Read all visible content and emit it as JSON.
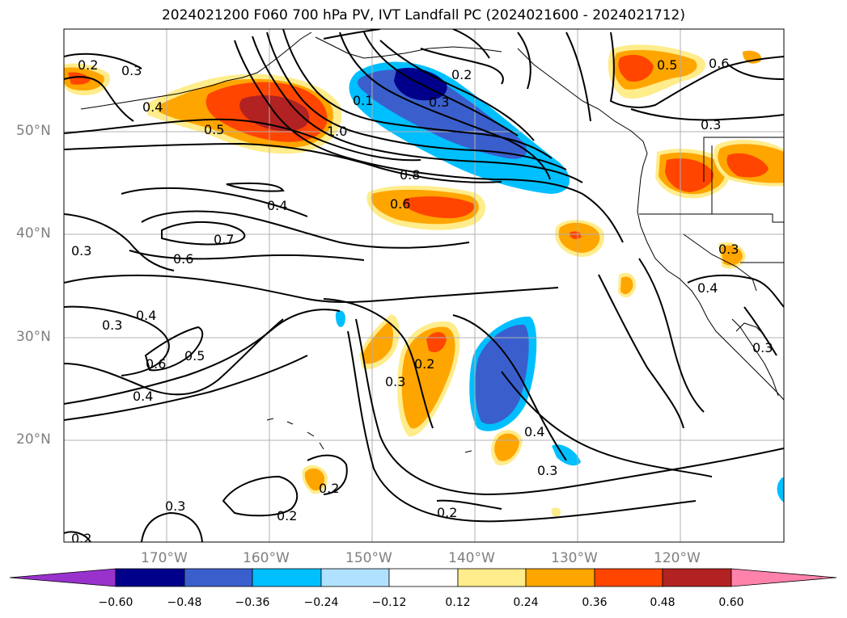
{
  "title": "2024021200 F060 700 hPa PV, IVT Landfall PC (2024021600 - 2024021712)",
  "lat_labels": [
    "50°N",
    "40°N",
    "30°N",
    "20°N"
  ],
  "lon_labels": [
    "170°W",
    "160°W",
    "150°W",
    "140°W",
    "130°W",
    "120°W"
  ],
  "colorbar": {
    "ticks": [
      "−0.60",
      "−0.48",
      "−0.36",
      "−0.24",
      "−0.12",
      "0.12",
      "0.24",
      "0.36",
      "0.48",
      "0.60"
    ],
    "colors": [
      "#9932cc",
      "#00008b",
      "#3a5fcd",
      "#00bfff",
      "#b0e2ff",
      "#ffffff",
      "#ffec8b",
      "#ffa500",
      "#ff4500",
      "#b22222",
      "#ff82ab"
    ]
  },
  "contour_labels": [
    "0.2",
    "0.3",
    "0.4",
    "0.5",
    "1.0",
    "0.1",
    "0.3",
    "0.2",
    "0.5",
    "0.6",
    "0.8",
    "0.6",
    "0.4",
    "0.7",
    "0.6",
    "0.3",
    "0.3",
    "0.4",
    "0.6",
    "0.5",
    "0.4",
    "0.2",
    "0.3",
    "0.4",
    "0.3",
    "0.2",
    "0.2",
    "0.3",
    "0.2",
    "0.2",
    "0.3",
    "0.4",
    "0.3",
    "0.3"
  ]
}
